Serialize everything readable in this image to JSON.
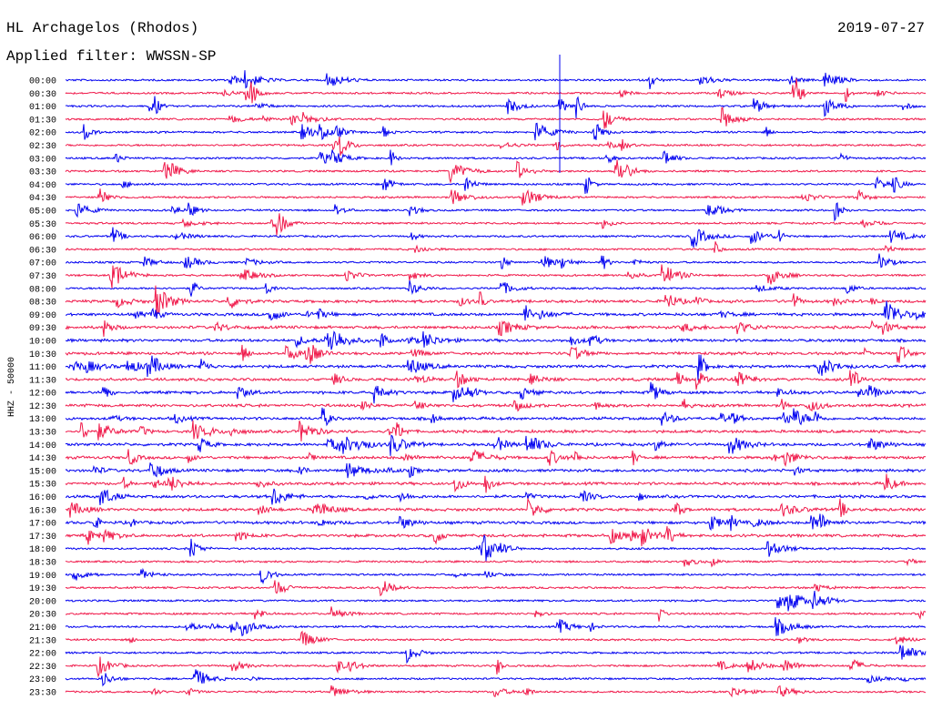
{
  "header": {
    "station": "HL Archagelos (Rhodos)",
    "date": "2019-07-27",
    "filter": "Applied filter: WWSSN-SP"
  },
  "plot": {
    "channel_label": "HHZ - 50000",
    "row_labels": [
      "00:00",
      "00:30",
      "01:00",
      "01:30",
      "02:00",
      "02:30",
      "03:00",
      "03:30",
      "04:00",
      "04:30",
      "05:00",
      "05:30",
      "06:00",
      "06:30",
      "07:00",
      "07:30",
      "08:00",
      "08:30",
      "09:00",
      "09:30",
      "10:00",
      "10:30",
      "11:00",
      "11:30",
      "12:00",
      "12:30",
      "13:00",
      "13:30",
      "14:00",
      "14:30",
      "15:00",
      "15:30",
      "16:00",
      "16:30",
      "17:00",
      "17:30",
      "18:00",
      "18:30",
      "19:00",
      "19:30",
      "20:00",
      "20:30",
      "21:00",
      "21:30",
      "22:00",
      "22:30",
      "23:00",
      "23:30"
    ]
  }
}
